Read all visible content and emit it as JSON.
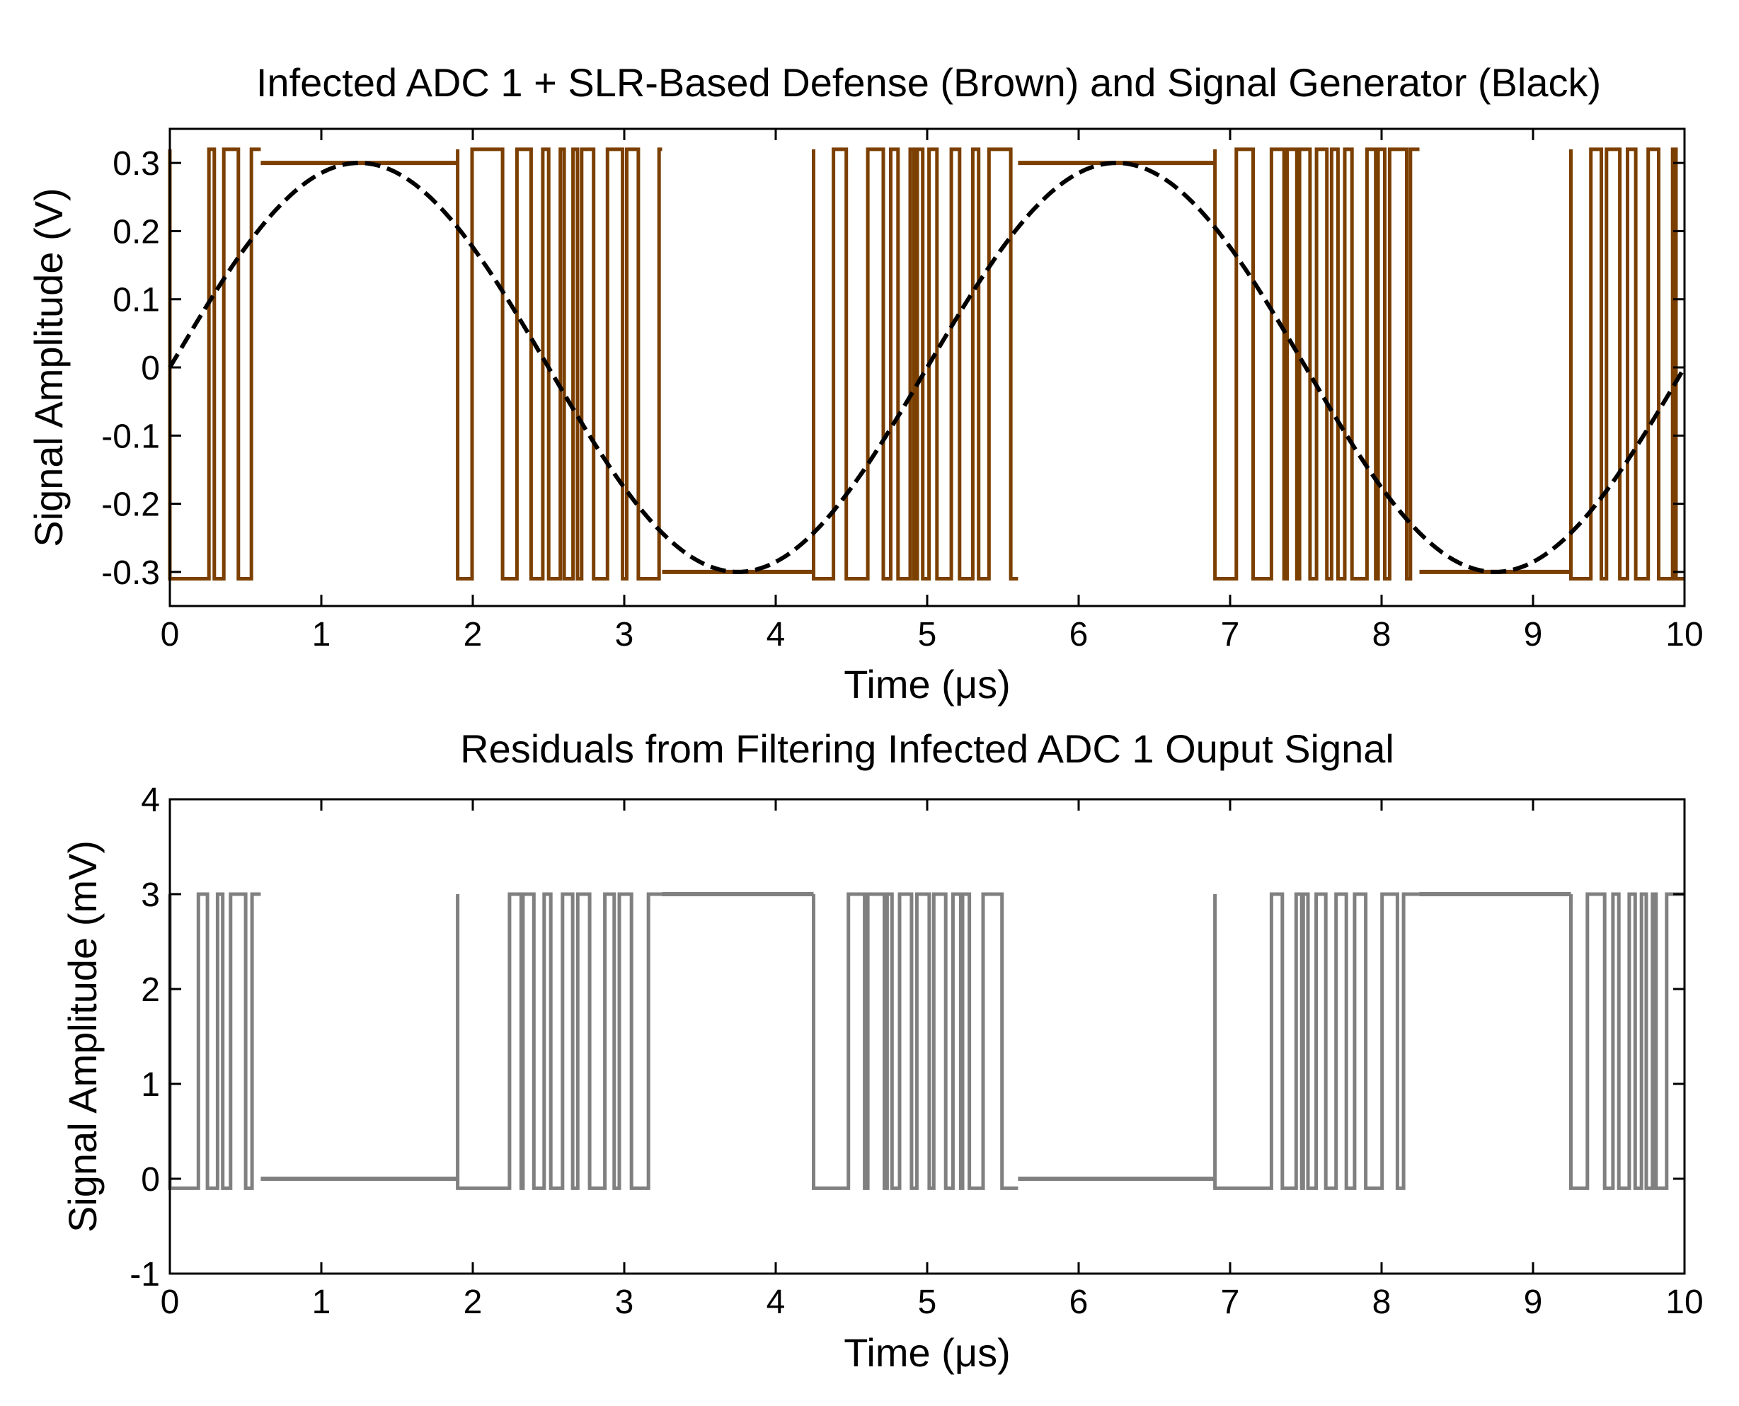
{
  "chart_data": [
    {
      "type": "line",
      "title": "Infected ADC 1 + SLR-Based Defense (Brown) and Signal Generator (Black)",
      "xlabel": "Time (μs)",
      "ylabel": "Signal Amplitude (V)",
      "xlim": [
        0,
        10
      ],
      "ylim": [
        -0.35,
        0.35
      ],
      "xticks": [
        0,
        1,
        2,
        3,
        4,
        5,
        6,
        7,
        8,
        9,
        10
      ],
      "yticks": [
        -0.3,
        -0.2,
        -0.1,
        0,
        0.1,
        0.2,
        0.3
      ],
      "ytick_labels": [
        "-0.3",
        "-0.2",
        "-0.1",
        "0",
        "0.1",
        "0.2",
        "0.3"
      ],
      "grid": false,
      "series": [
        {
          "name": "Infected ADC 1 + SLR-Based Defense",
          "color": "#7B3F00",
          "style": "solid",
          "pattern": "switching bursts between -0.3 V and 0.3 V (overshoot to 0.32 V)",
          "high_level": 0.3,
          "low_level": -0.3,
          "spike_high": 0.32,
          "spike_low": -0.31,
          "burst_regions": [
            [
              0.0,
              0.6
            ],
            [
              1.9,
              3.25
            ],
            [
              4.25,
              5.6
            ],
            [
              6.9,
              8.25
            ],
            [
              9.25,
              10.0
            ]
          ],
          "steady_segments": [
            {
              "x": [
                0.6,
                1.9
              ],
              "y": 0.3
            },
            {
              "x": [
                3.25,
                4.25
              ],
              "y": -0.3
            },
            {
              "x": [
                5.6,
                6.9
              ],
              "y": 0.3
            },
            {
              "x": [
                8.25,
                9.25
              ],
              "y": -0.3
            }
          ]
        },
        {
          "name": "Signal Generator",
          "color": "#000000",
          "style": "dashed",
          "function": "0.3*sin(2*pi*0.2*t)",
          "amplitude": 0.3,
          "frequency_MHz": 0.2,
          "peaks": [
            [
              1.25,
              0.3
            ],
            [
              6.25,
              0.3
            ]
          ],
          "troughs": [
            [
              3.75,
              -0.3
            ],
            [
              8.75,
              -0.3
            ]
          ]
        }
      ]
    },
    {
      "type": "line",
      "title": "Residuals from Filtering Infected ADC 1 Ouput Signal",
      "xlabel": "Time (μs)",
      "ylabel": "Signal Amplitude (mV)",
      "xlim": [
        0,
        10
      ],
      "ylim": [
        -1,
        4
      ],
      "xticks": [
        0,
        1,
        2,
        3,
        4,
        5,
        6,
        7,
        8,
        9,
        10
      ],
      "yticks": [
        -1,
        0,
        1,
        2,
        3,
        4
      ],
      "ytick_labels": [
        "-1",
        "0",
        "1",
        "2",
        "3",
        "4"
      ],
      "grid": false,
      "series": [
        {
          "name": "Residuals",
          "color": "#808080",
          "style": "solid",
          "pattern": "switching bursts between 0 mV and 3 mV",
          "high_level": 3,
          "low_level": 0,
          "spike_high": 3.0,
          "spike_low": -0.1,
          "burst_regions": [
            [
              0.0,
              0.6
            ],
            [
              1.9,
              3.25
            ],
            [
              4.25,
              5.6
            ],
            [
              6.9,
              8.25
            ],
            [
              9.25,
              10.0
            ]
          ],
          "steady_segments": [
            {
              "x": [
                0.6,
                1.9
              ],
              "y": 0
            },
            {
              "x": [
                3.25,
                4.25
              ],
              "y": 3
            },
            {
              "x": [
                5.6,
                6.9
              ],
              "y": 0
            },
            {
              "x": [
                8.25,
                9.25
              ],
              "y": 3
            }
          ]
        }
      ]
    }
  ]
}
